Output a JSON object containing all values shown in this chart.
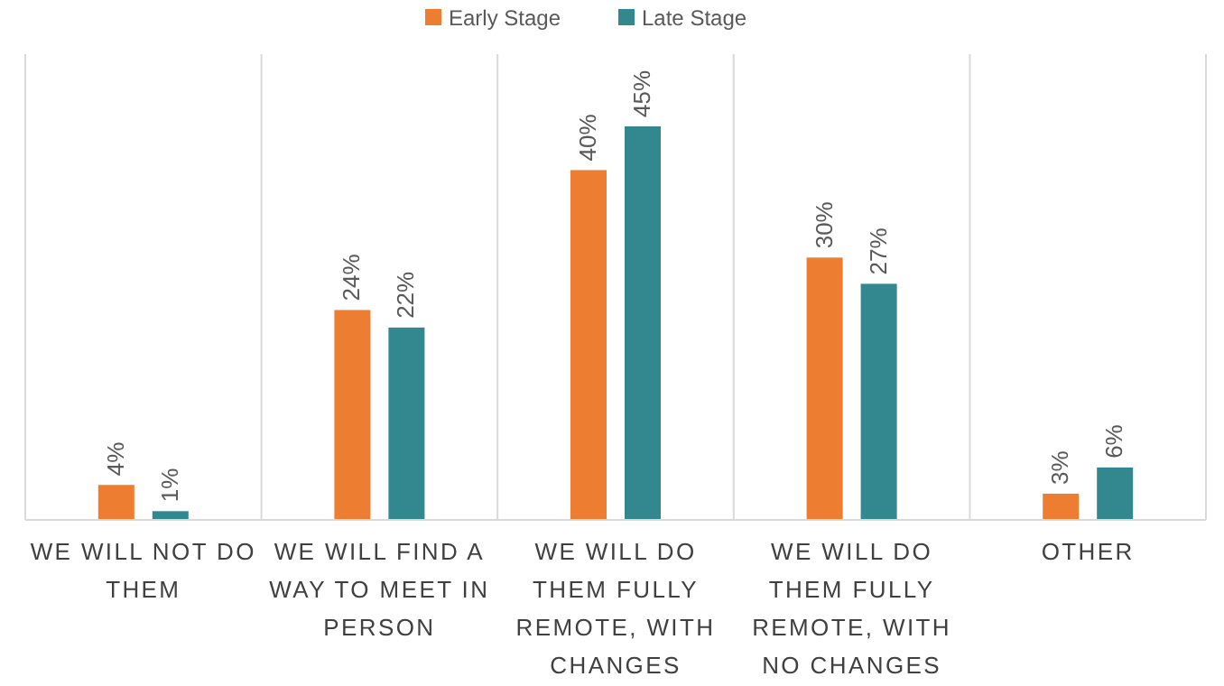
{
  "chart_data": {
    "type": "bar",
    "categories": [
      "WE WILL NOT DO THEM",
      "WE WILL FIND A WAY TO MEET IN PERSON",
      "WE WILL DO THEM FULLY REMOTE, WITH CHANGES",
      "WE WILL DO THEM FULLY REMOTE, WITH NO CHANGES",
      "OTHER"
    ],
    "series": [
      {
        "name": "Early Stage",
        "color": "#ed7d31",
        "values": [
          4,
          24,
          40,
          30,
          3
        ],
        "value_labels": [
          "4%",
          "24%",
          "40%",
          "30%",
          "3%"
        ]
      },
      {
        "name": "Late Stage",
        "color": "#33878f",
        "values": [
          1,
          22,
          45,
          27,
          6
        ],
        "value_labels": [
          "1%",
          "22%",
          "45%",
          "27%",
          "6%"
        ]
      }
    ],
    "legend": "top",
    "grid": "x"
  }
}
